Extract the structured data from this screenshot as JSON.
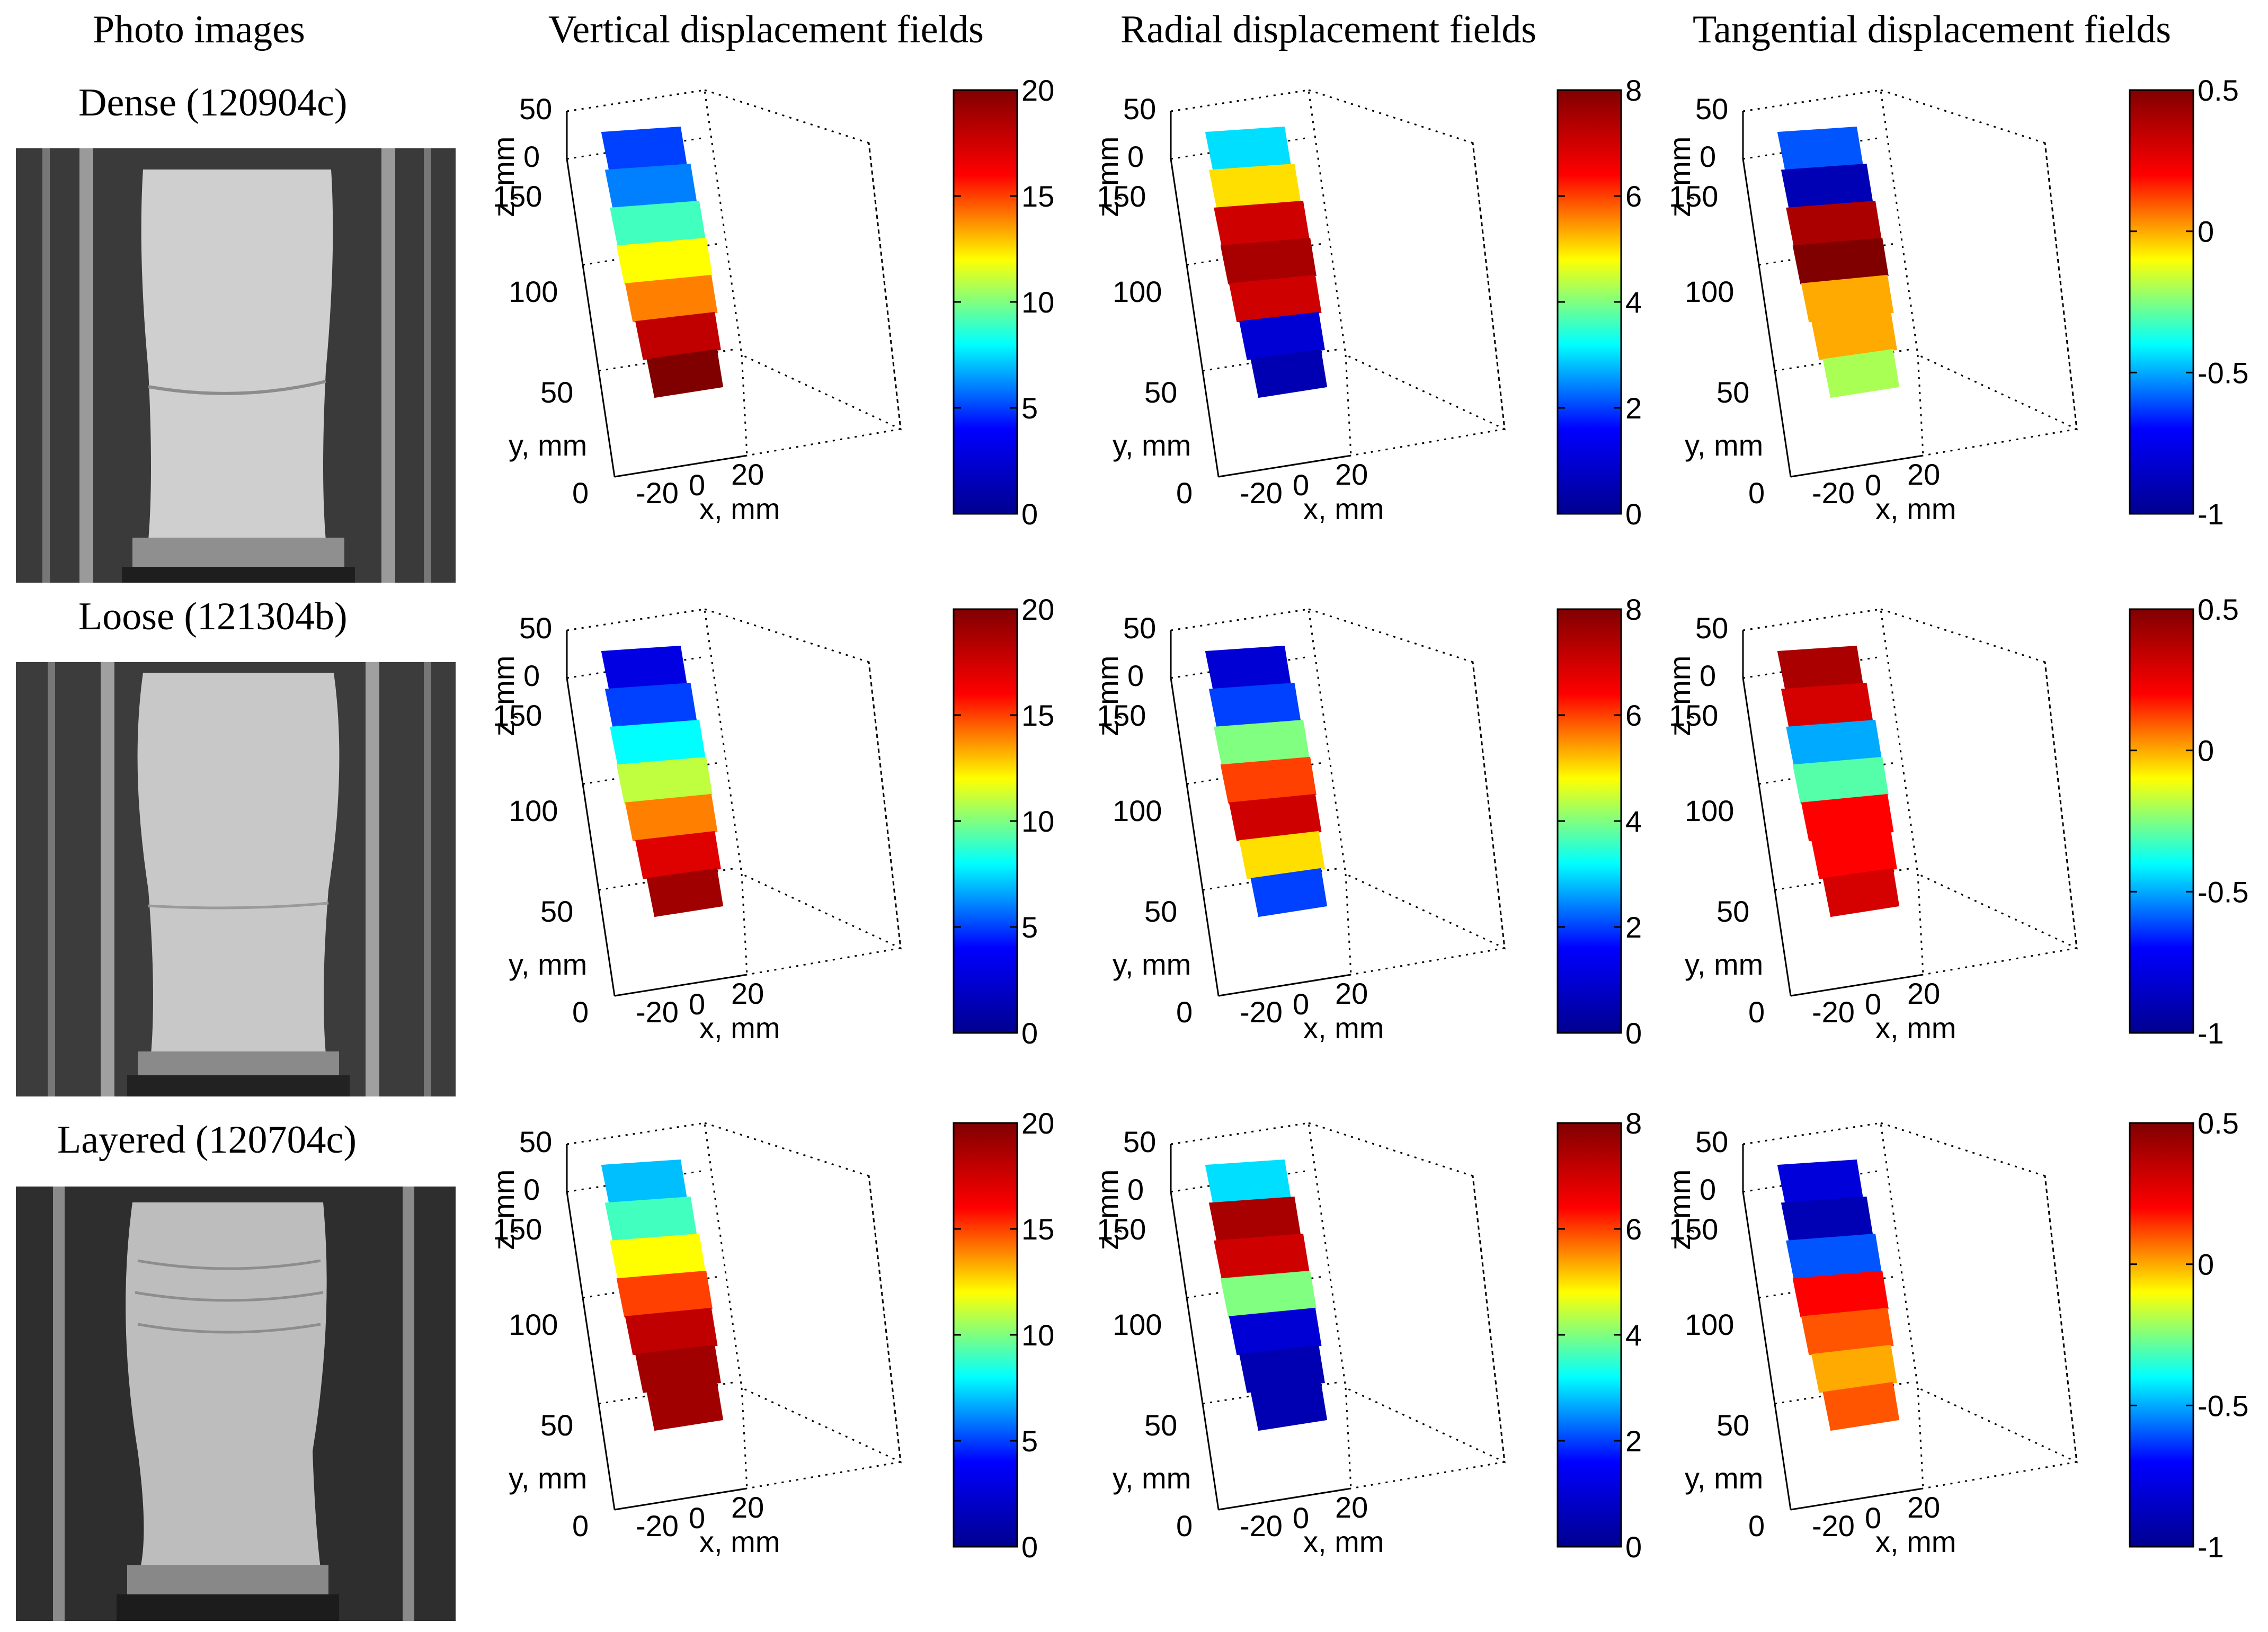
{
  "headers": {
    "photo": "Photo images",
    "vertical": "Vertical displacement fields",
    "radial": "Radial displacement fields",
    "tangential": "Tangential displacement fields"
  },
  "rows": [
    {
      "label": "Dense (120904c)"
    },
    {
      "label": "Loose (121304b)"
    },
    {
      "label": "Layered (120704c)"
    }
  ],
  "axes": {
    "zlabel": "z, mm",
    "ylabel": "y, mm",
    "xlabel": "x, mm",
    "zticks": [
      "50",
      "0"
    ],
    "yticks": [
      "150",
      "100",
      "50",
      "0"
    ],
    "xticks": [
      "-20",
      "0",
      "20"
    ]
  },
  "colorbars": {
    "vertical": [
      "20",
      "15",
      "10",
      "5",
      "0"
    ],
    "radial": [
      "8",
      "6",
      "4",
      "2",
      "0"
    ],
    "tangential": [
      "0.5",
      "0",
      "-0.5",
      "-1"
    ]
  },
  "colors": {
    "jet": [
      "#00008f",
      "#0000ff",
      "#00ffff",
      "#ffff00",
      "#ff0000",
      "#800000"
    ]
  },
  "chart_data": [
    {
      "type": "heatmap",
      "title": "Vertical displacement fields",
      "xlabel": "x, mm",
      "ylabel": "y, mm",
      "zlabel": "z, mm",
      "colorbar": {
        "min": 0,
        "max": 20,
        "ticks": [
          0,
          5,
          10,
          15,
          20
        ]
      },
      "series": [
        {
          "name": "Dense (120904c)",
          "bands": [
            5,
            6,
            9,
            12,
            14,
            18,
            20
          ]
        },
        {
          "name": "Loose (121304b)",
          "bands": [
            3,
            5,
            8,
            11,
            14,
            17,
            19
          ]
        },
        {
          "name": "Layered (120704c)",
          "bands": [
            7,
            9,
            12,
            15,
            18,
            19,
            19
          ]
        }
      ]
    },
    {
      "type": "heatmap",
      "title": "Radial displacement fields",
      "xlabel": "x, mm",
      "ylabel": "y, mm",
      "zlabel": "z, mm",
      "colorbar": {
        "min": 0,
        "max": 8,
        "ticks": [
          0,
          2,
          4,
          6,
          8
        ]
      },
      "series": [
        {
          "name": "Dense (120904c)",
          "bands": [
            3,
            5,
            7,
            7.5,
            7,
            1,
            0.5
          ]
        },
        {
          "name": "Loose (121304b)",
          "bands": [
            1,
            2,
            4,
            6,
            7,
            5,
            2
          ]
        },
        {
          "name": "Layered (120704c)",
          "bands": [
            3,
            7.5,
            7,
            4,
            1,
            0.5,
            0.5
          ]
        }
      ]
    },
    {
      "type": "heatmap",
      "title": "Tangential displacement fields",
      "xlabel": "x, mm",
      "ylabel": "y, mm",
      "zlabel": "z, mm",
      "colorbar": {
        "min": -1,
        "max": 0.5,
        "ticks": [
          -1,
          -0.5,
          0,
          0.5
        ]
      },
      "series": [
        {
          "name": "Dense (120904c)",
          "bands": [
            -0.6,
            -0.9,
            0.4,
            0.5,
            0,
            0,
            -0.2
          ]
        },
        {
          "name": "Loose (121304b)",
          "bands": [
            0.4,
            0.3,
            -0.5,
            -0.3,
            0.2,
            0.2,
            0.3
          ]
        },
        {
          "name": "Layered (120704c)",
          "bands": [
            -0.8,
            -0.9,
            -0.6,
            0.2,
            0.1,
            0,
            0.1
          ]
        }
      ]
    }
  ]
}
